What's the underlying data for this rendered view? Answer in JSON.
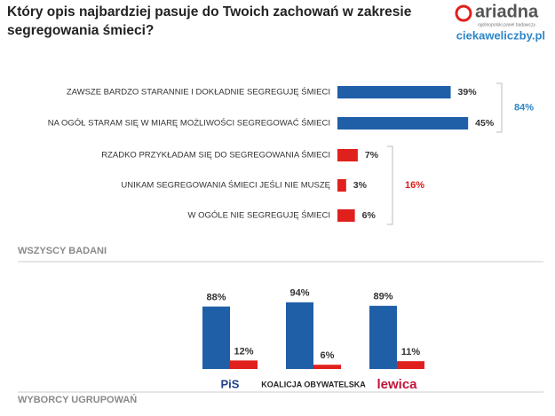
{
  "header": {
    "title": "Który opis najbardziej pasuje do Twoich zachowań w zakresie segregowania śmieci?",
    "logo": "ariadna",
    "logo_tagline": "ogólnopolski panel badawczy",
    "website": "ciekaweliczby.pl"
  },
  "chart_data": [
    {
      "type": "hbar",
      "section_label": "WSZYSCY BADANI",
      "categories": [
        "ZAWSZE BARDZO STARANNIE I DOKŁADNIE SEGREGUJĘ ŚMIECI",
        "NA OGÓŁ STARAM SIĘ W MIARĘ MOŻLIWOŚCI SEGREGOWAĆ ŚMIECI",
        "RZADKO PRZYKŁADAM SIĘ DO SEGREGOWANIA ŚMIECI",
        "UNIKAM SEGREGOWANIA ŚMIECI JEŚLI NIE MUSZĘ",
        "W OGÓLE NIE SEGREGUJĘ ŚMIECI"
      ],
      "values": [
        39,
        45,
        7,
        3,
        6
      ],
      "value_labels": [
        "39%",
        "45%",
        "7%",
        "3%",
        "6%"
      ],
      "colors": [
        "#1f5fa8",
        "#1f5fa8",
        "#e0201c",
        "#e0201c",
        "#e0201c"
      ],
      "xlim": [
        0,
        100
      ],
      "annotations": [
        {
          "value": 84,
          "label": "84%",
          "color": "#2e86c8",
          "span": [
            0,
            1
          ]
        },
        {
          "value": 16,
          "label": "16%",
          "color": "#d9201c",
          "span": [
            2,
            4
          ]
        }
      ]
    },
    {
      "type": "bar",
      "section_label": "WYBORCY UGRUPOWAŃ",
      "categories": [
        "PiS",
        "KOALICJA OBYWATELSKA",
        "lewica"
      ],
      "ylim": [
        0,
        100
      ],
      "series": [
        {
          "color": "#1f5fa8",
          "values": [
            88,
            94,
            89
          ],
          "value_labels": [
            "88%",
            "94%",
            "89%"
          ]
        },
        {
          "color": "#e0201c",
          "values": [
            12,
            6,
            11
          ],
          "value_labels": [
            "12%",
            "6%",
            "11%"
          ]
        }
      ]
    }
  ]
}
